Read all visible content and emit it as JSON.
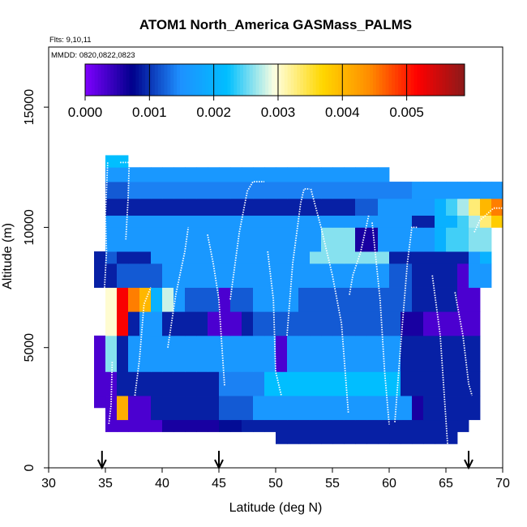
{
  "chart_data": {
    "type": "heatmap",
    "title": "ATOM1 North_America GASMass_PALMS",
    "annotation_flights": "Flts: 9,10,11",
    "annotation_dates": "MMDD: 0820,0822,0823",
    "xlabel": "Latitude (deg N)",
    "ylabel": "Altitude (m)",
    "xlim": [
      30,
      70
    ],
    "ylim": [
      0,
      17500
    ],
    "xticks": [
      30,
      35,
      40,
      45,
      50,
      55,
      60,
      65,
      70
    ],
    "yticks": [
      0,
      5000,
      10000,
      15000
    ],
    "colorbar": {
      "range": [
        0,
        0.0059
      ],
      "ticks": [
        0.0,
        0.001,
        0.002,
        0.003,
        0.004,
        0.005
      ],
      "tick_labels": [
        "0.000",
        "0.001",
        "0.002",
        "0.003",
        "0.004",
        "0.005"
      ],
      "colors": [
        "#7f00ff",
        "#00008b",
        "#1e90ff",
        "#00bfff",
        "#ffffe0",
        "#ffd700",
        "#ff8c00",
        "#ff0000",
        "#8b1a1a"
      ]
    },
    "arrow_latitudes": [
      34.7,
      45,
      67
    ],
    "cell_width_deg": 1,
    "layers": [
      {
        "y0": 1000,
        "y1": 1500,
        "x0": 50,
        "x1": 66,
        "values": [
          0.0009,
          0.0009,
          0.0009,
          0.0009,
          0.0009,
          0.0009,
          0.0009,
          0.0009,
          0.0009,
          0.0009,
          0.0009,
          0.0009,
          0.0009,
          0.0009,
          0.0009,
          0.0009
        ]
      },
      {
        "y0": 1500,
        "y1": 2000,
        "x0": 35,
        "x1": 67,
        "values": [
          0.0003,
          0.0003,
          0.0003,
          0.0003,
          0.0003,
          0.0006,
          0.0006,
          0.0006,
          0.0006,
          0.0006,
          0.0008,
          0.0008,
          0.0009,
          0.0009,
          0.0009,
          0.0009,
          0.0009,
          0.0009,
          0.0009,
          0.0009,
          0.0009,
          0.0009,
          0.0009,
          0.0009,
          0.0009,
          0.0009,
          0.0009,
          0.0009,
          0.0009,
          0.0009,
          0.0009,
          0.0009
        ]
      },
      {
        "y0": 2000,
        "y1": 3000,
        "x0": 35,
        "x1": 68,
        "values": [
          0.0003,
          0.0041,
          0.0003,
          0.0003,
          0.0009,
          0.0009,
          0.0009,
          0.0009,
          0.0009,
          0.0009,
          0.0012,
          0.0012,
          0.0012,
          0.0016,
          0.0016,
          0.0016,
          0.0016,
          0.0016,
          0.0016,
          0.0016,
          0.0016,
          0.0016,
          0.0016,
          0.0016,
          0.0016,
          0.0016,
          0.0016,
          0.0006,
          0.0009,
          0.0009,
          0.0009,
          0.0009,
          0.0009
        ]
      },
      {
        "y0": 2500,
        "y1": 3500,
        "x0": 34,
        "x1": 35,
        "values": [
          0.0003
        ]
      },
      {
        "y0": 3000,
        "y1": 4000,
        "x0": 34,
        "x1": 68,
        "values": [
          0.0003,
          0.0003,
          0.0009,
          0.0009,
          0.0009,
          0.0009,
          0.0009,
          0.0009,
          0.0009,
          0.0009,
          0.0009,
          0.0014,
          0.0014,
          0.0014,
          0.0014,
          0.0022,
          0.0022,
          0.0022,
          0.0022,
          0.0022,
          0.0022,
          0.0022,
          0.0022,
          0.0022,
          0.0022,
          0.0022,
          0.0022,
          0.0009,
          0.0009,
          0.0009,
          0.0009,
          0.0009,
          0.0009,
          0.0009
        ]
      },
      {
        "y0": 4000,
        "y1": 5500,
        "x0": 34,
        "x1": 68,
        "values": [
          0.0003,
          0.0026,
          0.0009,
          0.0016,
          0.0016,
          0.0016,
          0.0016,
          0.0016,
          0.0016,
          0.0016,
          0.0016,
          0.0016,
          0.0016,
          0.0016,
          0.0016,
          0.0016,
          0.0003,
          0.0016,
          0.0016,
          0.0016,
          0.0016,
          0.0016,
          0.0016,
          0.0016,
          0.0016,
          0.0016,
          0.0016,
          0.0009,
          0.0009,
          0.0009,
          0.0009,
          0.0009,
          0.0009,
          0.0009
        ]
      },
      {
        "y0": 5500,
        "y1": 6500,
        "x0": 35,
        "x1": 68,
        "values": [
          0.003,
          0.0052,
          0.0009,
          0.0016,
          0.0016,
          0.0009,
          0.0009,
          0.0009,
          0.0009,
          0.0003,
          0.0003,
          0.0003,
          0.0009,
          0.0012,
          0.0012,
          0.0012,
          0.0012,
          0.0012,
          0.0012,
          0.0012,
          0.0012,
          0.0012,
          0.0012,
          0.0012,
          0.0012,
          0.0012,
          0.0006,
          0.0006,
          0.0003,
          0.0003,
          0.0003,
          0.0003,
          0.0003
        ]
      },
      {
        "y0": 6500,
        "y1": 7500,
        "x0": 35,
        "x1": 68,
        "values": [
          0.003,
          0.0052,
          0.0045,
          0.004,
          0.002,
          0.0028,
          0.0016,
          0.0012,
          0.0012,
          0.0012,
          0.0003,
          0.0012,
          0.0012,
          0.0016,
          0.0016,
          0.0016,
          0.0016,
          0.0012,
          0.0012,
          0.0012,
          0.0012,
          0.0012,
          0.0012,
          0.0012,
          0.0012,
          0.0012,
          0.0012,
          0.0009,
          0.0009,
          0.0009,
          0.0009,
          0.0003,
          0.0003
        ]
      },
      {
        "y0": 7500,
        "y1": 8500,
        "x0": 34,
        "x1": 69,
        "values": [
          0.0009,
          0.0009,
          0.0012,
          0.0012,
          0.0012,
          0.0012,
          0.0016,
          0.0016,
          0.0016,
          0.0016,
          0.0016,
          0.0016,
          0.0016,
          0.0016,
          0.0016,
          0.0016,
          0.0016,
          0.0016,
          0.0016,
          0.0016,
          0.0016,
          0.0016,
          0.0016,
          0.0016,
          0.0016,
          0.0016,
          0.0012,
          0.0012,
          0.0009,
          0.0009,
          0.0009,
          0.0009,
          0.0003,
          0.0016,
          0.0016
        ]
      },
      {
        "y0": 8500,
        "y1": 9000,
        "x0": 34,
        "x1": 69,
        "values": [
          0.0009,
          0.0012,
          0.0009,
          0.0009,
          0.0009,
          0.0016,
          0.0016,
          0.0016,
          0.0016,
          0.0016,
          0.0016,
          0.0016,
          0.0016,
          0.0016,
          0.0016,
          0.0016,
          0.0016,
          0.0016,
          0.0016,
          0.0026,
          0.0026,
          0.0026,
          0.0026,
          0.0026,
          0.0026,
          0.0026,
          0.0009,
          0.0009,
          0.0009,
          0.0009,
          0.0009,
          0.0009,
          0.0009,
          0.0016,
          0.002
        ]
      },
      {
        "y0": 9000,
        "y1": 10000,
        "x0": 35,
        "x1": 69,
        "values": [
          0.0016,
          0.0016,
          0.0016,
          0.0016,
          0.0016,
          0.0016,
          0.0016,
          0.0016,
          0.0016,
          0.0016,
          0.0016,
          0.0016,
          0.0016,
          0.0016,
          0.0016,
          0.0016,
          0.0016,
          0.0016,
          0.0016,
          0.0026,
          0.0026,
          0.0026,
          0.0006,
          0.0006,
          0.0016,
          0.0016,
          0.0016,
          0.0016,
          0.0016,
          0.002,
          0.0024,
          0.0024,
          0.0026,
          0.0026
        ]
      },
      {
        "y0": 10000,
        "y1": 10500,
        "x0": 35,
        "x1": 70,
        "values": [
          0.0016,
          0.0016,
          0.0016,
          0.0016,
          0.0016,
          0.0016,
          0.0016,
          0.0016,
          0.0016,
          0.0016,
          0.0016,
          0.0016,
          0.0016,
          0.0016,
          0.0016,
          0.0016,
          0.0016,
          0.0016,
          0.0016,
          0.0016,
          0.0016,
          0.0016,
          0.0016,
          0.0016,
          0.0016,
          0.0016,
          0.0016,
          0.0009,
          0.0009,
          0.002,
          0.002,
          0.0024,
          0.0027,
          0.0033,
          0.0038
        ]
      },
      {
        "y0": 10500,
        "y1": 11200,
        "x0": 35,
        "x1": 70,
        "values": [
          0.0009,
          0.0009,
          0.0009,
          0.0009,
          0.0009,
          0.0009,
          0.0009,
          0.0009,
          0.0009,
          0.0009,
          0.0009,
          0.0009,
          0.0009,
          0.0009,
          0.0009,
          0.0009,
          0.0009,
          0.0009,
          0.0009,
          0.0009,
          0.0009,
          0.0009,
          0.0012,
          0.0012,
          0.0016,
          0.0016,
          0.0016,
          0.0016,
          0.0016,
          0.002,
          0.0024,
          0.0027,
          0.0033,
          0.004,
          0.0045
        ]
      },
      {
        "y0": 11200,
        "y1": 11900,
        "x0": 35,
        "x1": 70,
        "values": [
          0.0012,
          0.0012,
          0.0014,
          0.0014,
          0.0014,
          0.0014,
          0.0014,
          0.0014,
          0.0014,
          0.0014,
          0.0014,
          0.0014,
          0.0014,
          0.0014,
          0.0014,
          0.0014,
          0.0014,
          0.0014,
          0.0014,
          0.0014,
          0.0014,
          0.0014,
          0.0014,
          0.0014,
          0.0014,
          0.0014,
          0.0014,
          0.0016,
          0.0016,
          0.0016,
          0.0016,
          0.0016,
          0.0016,
          0.0016,
          0.0016
        ]
      },
      {
        "y0": 11900,
        "y1": 12500,
        "x0": 35,
        "x1": 60,
        "values": [
          0.0016,
          0.0016,
          0.0016,
          0.0016,
          0.0016,
          0.0016,
          0.0016,
          0.0016,
          0.0016,
          0.0016,
          0.0016,
          0.0016,
          0.0016,
          0.0016,
          0.0016,
          0.0016,
          0.0016,
          0.0016,
          0.0016,
          0.0016,
          0.0016,
          0.0016,
          0.0016,
          0.0016,
          0.0016
        ]
      },
      {
        "y0": 12500,
        "y1": 13000,
        "x0": 35,
        "x1": 37,
        "values": [
          0.0022,
          0.0022
        ]
      }
    ],
    "flight_tracks": [
      {
        "points": [
          [
            35.2,
            12700
          ],
          [
            35.0,
            10500
          ],
          [
            35.1,
            9000
          ],
          [
            34.9,
            7300
          ]
        ]
      },
      {
        "points": [
          [
            36.3,
            12700
          ],
          [
            37.1,
            12700
          ],
          [
            37.0,
            11200
          ],
          [
            36.8,
            9500
          ]
        ]
      },
      {
        "points": [
          [
            35.6,
            4400
          ],
          [
            35.5,
            2600
          ],
          [
            35.3,
            1800
          ]
        ]
      },
      {
        "points": [
          [
            37.6,
            3000
          ],
          [
            38.0,
            4500
          ],
          [
            38.4,
            6800
          ],
          [
            39.0,
            7500
          ]
        ]
      },
      {
        "points": [
          [
            40.5,
            5000
          ],
          [
            41.2,
            7200
          ],
          [
            42.0,
            9000
          ],
          [
            42.3,
            10000
          ]
        ]
      },
      {
        "points": [
          [
            44.0,
            9700
          ],
          [
            44.5,
            8500
          ],
          [
            45.0,
            7000
          ],
          [
            45.2,
            5500
          ],
          [
            45.5,
            3400
          ]
        ]
      },
      {
        "points": [
          [
            46.0,
            7000
          ],
          [
            46.8,
            9800
          ],
          [
            47.5,
            11500
          ],
          [
            48.0,
            11900
          ],
          [
            49.0,
            11900
          ]
        ]
      },
      {
        "points": [
          [
            49.3,
            9000
          ],
          [
            49.8,
            7000
          ],
          [
            50.0,
            4000
          ],
          [
            50.5,
            3000
          ]
        ]
      },
      {
        "points": [
          [
            51.0,
            5500
          ],
          [
            51.5,
            8500
          ],
          [
            52.2,
            11000
          ],
          [
            52.5,
            11600
          ],
          [
            53.0,
            11600
          ]
        ]
      },
      {
        "points": [
          [
            53.1,
            11600
          ],
          [
            54.0,
            10000
          ],
          [
            55.0,
            8000
          ],
          [
            55.8,
            6000
          ],
          [
            56.4,
            2300
          ]
        ]
      },
      {
        "points": [
          [
            56.5,
            7200
          ],
          [
            56.8,
            8000
          ],
          [
            57.5,
            9000
          ],
          [
            58.2,
            10500
          ]
        ]
      },
      {
        "points": [
          [
            58.5,
            10200
          ],
          [
            59.2,
            7000
          ],
          [
            59.6,
            4000
          ],
          [
            60.0,
            1800
          ]
        ]
      },
      {
        "points": [
          [
            60.5,
            1900
          ],
          [
            61.0,
            5000
          ],
          [
            61.6,
            8500
          ],
          [
            62.0,
            10000
          ],
          [
            62.5,
            10000
          ]
        ]
      },
      {
        "points": [
          [
            63.8,
            8000
          ],
          [
            64.5,
            5500
          ],
          [
            65.2,
            600
          ]
        ]
      },
      {
        "points": [
          [
            65.8,
            7300
          ],
          [
            66.5,
            5500
          ],
          [
            67.0,
            3500
          ],
          [
            67.3,
            3000
          ]
        ]
      },
      {
        "points": [
          [
            67.5,
            9800
          ],
          [
            68.0,
            10300
          ],
          [
            68.5,
            10500
          ],
          [
            69.2,
            10800
          ],
          [
            70.0,
            10800
          ]
        ]
      }
    ]
  }
}
